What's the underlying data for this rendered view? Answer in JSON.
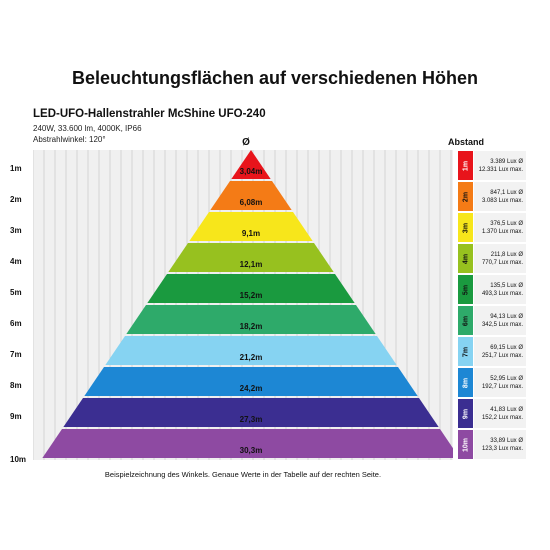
{
  "title": "Beleuchtungsflächen auf verschiedenen Höhen",
  "subtitle": "LED-UFO-Hallenstrahler McShine UFO-240",
  "spec_lines": [
    "240W, 33.600 lm, 4000K, IP66",
    "Abstrahlwinkel: 120°"
  ],
  "diameter_symbol": "Ø",
  "distance_header": "Abstand",
  "footnote": "Beispielzeichnung des Winkels. Genaue Werte in der Tabelle auf der rechten Seite.",
  "levels": [
    {
      "height": "1m",
      "diameter": "3,04m",
      "color": "#e8141b",
      "label_color": "#ffffff",
      "lux_avg": "3.389 Lux Ø",
      "lux_max": "12.331 Lux max."
    },
    {
      "height": "2m",
      "diameter": "6,08m",
      "color": "#f47b16",
      "label_color": "#111111",
      "lux_avg": "847,1 Lux Ø",
      "lux_max": "3.083 Lux max."
    },
    {
      "height": "3m",
      "diameter": "9,1m",
      "color": "#f7e61b",
      "label_color": "#111111",
      "lux_avg": "376,5 Lux Ø",
      "lux_max": "1.370 Lux max."
    },
    {
      "height": "4m",
      "diameter": "12,1m",
      "color": "#97c11f",
      "label_color": "#111111",
      "lux_avg": "211,8 Lux Ø",
      "lux_max": "770,7 Lux max."
    },
    {
      "height": "5m",
      "diameter": "15,2m",
      "color": "#1a9a3f",
      "label_color": "#111111",
      "lux_avg": "135,5 Lux Ø",
      "lux_max": "493,3 Lux max."
    },
    {
      "height": "6m",
      "diameter": "18,2m",
      "color": "#2eaa6a",
      "label_color": "#111111",
      "lux_avg": "94,13 Lux Ø",
      "lux_max": "342,5 Lux max."
    },
    {
      "height": "7m",
      "diameter": "21,2m",
      "color": "#86d3f2",
      "label_color": "#111111",
      "lux_avg": "69,15 Lux Ø",
      "lux_max": "251,7 Lux max."
    },
    {
      "height": "8m",
      "diameter": "24,2m",
      "color": "#1d87d4",
      "label_color": "#ffffff",
      "lux_avg": "52,95 Lux Ø",
      "lux_max": "192,7 Lux max."
    },
    {
      "height": "9m",
      "diameter": "27,3m",
      "color": "#3b2e91",
      "label_color": "#ffffff",
      "lux_avg": "41,83 Lux Ø",
      "lux_max": "152,2 Lux max."
    },
    {
      "height": "10m",
      "diameter": "30,3m",
      "color": "#8e4aa2",
      "label_color": "#ffffff",
      "lux_avg": "33,89 Lux Ø",
      "lux_max": "123,3 Lux max."
    }
  ]
}
